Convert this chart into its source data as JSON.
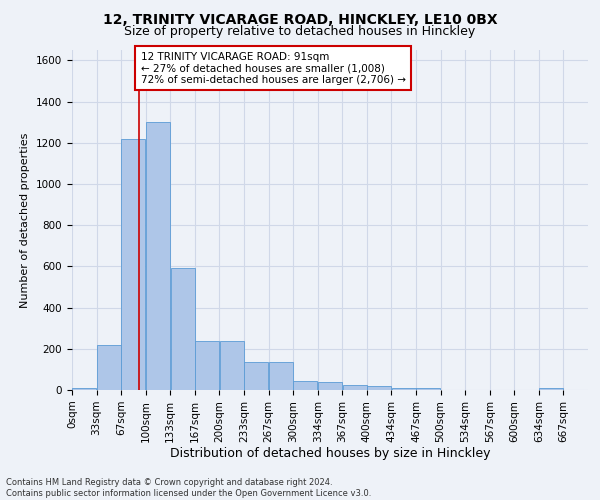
{
  "title_line1": "12, TRINITY VICARAGE ROAD, HINCKLEY, LE10 0BX",
  "title_line2": "Size of property relative to detached houses in Hinckley",
  "xlabel": "Distribution of detached houses by size in Hinckley",
  "ylabel": "Number of detached properties",
  "footnote": "Contains HM Land Registry data © Crown copyright and database right 2024.\nContains public sector information licensed under the Open Government Licence v3.0.",
  "bin_labels": [
    "0sqm",
    "33sqm",
    "67sqm",
    "100sqm",
    "133sqm",
    "167sqm",
    "200sqm",
    "233sqm",
    "267sqm",
    "300sqm",
    "334sqm",
    "367sqm",
    "400sqm",
    "434sqm",
    "467sqm",
    "500sqm",
    "534sqm",
    "567sqm",
    "600sqm",
    "634sqm",
    "667sqm"
  ],
  "bar_values": [
    10,
    220,
    1220,
    1300,
    590,
    238,
    238,
    135,
    135,
    45,
    40,
    25,
    20,
    10,
    10,
    0,
    0,
    0,
    0,
    10,
    0
  ],
  "bar_color": "#aec6e8",
  "bar_edge_color": "#5b9bd5",
  "property_line_x": 91,
  "bin_width": 33.33,
  "ylim": [
    0,
    1650
  ],
  "yticks": [
    0,
    200,
    400,
    600,
    800,
    1000,
    1200,
    1400,
    1600
  ],
  "annotation_text": "12 TRINITY VICARAGE ROAD: 91sqm\n← 27% of detached houses are smaller (1,008)\n72% of semi-detached houses are larger (2,706) →",
  "annotation_box_color": "#ffffff",
  "annotation_box_edge_color": "#cc0000",
  "vline_color": "#cc0000",
  "grid_color": "#d0d8e8",
  "background_color": "#eef2f8",
  "plot_bg_color": "#eef2f8",
  "title1_fontsize": 10,
  "title2_fontsize": 9,
  "annotation_fontsize": 7.5,
  "ylabel_fontsize": 8,
  "tick_fontsize": 7.5,
  "xlabel_fontsize": 9,
  "footnote_fontsize": 6
}
